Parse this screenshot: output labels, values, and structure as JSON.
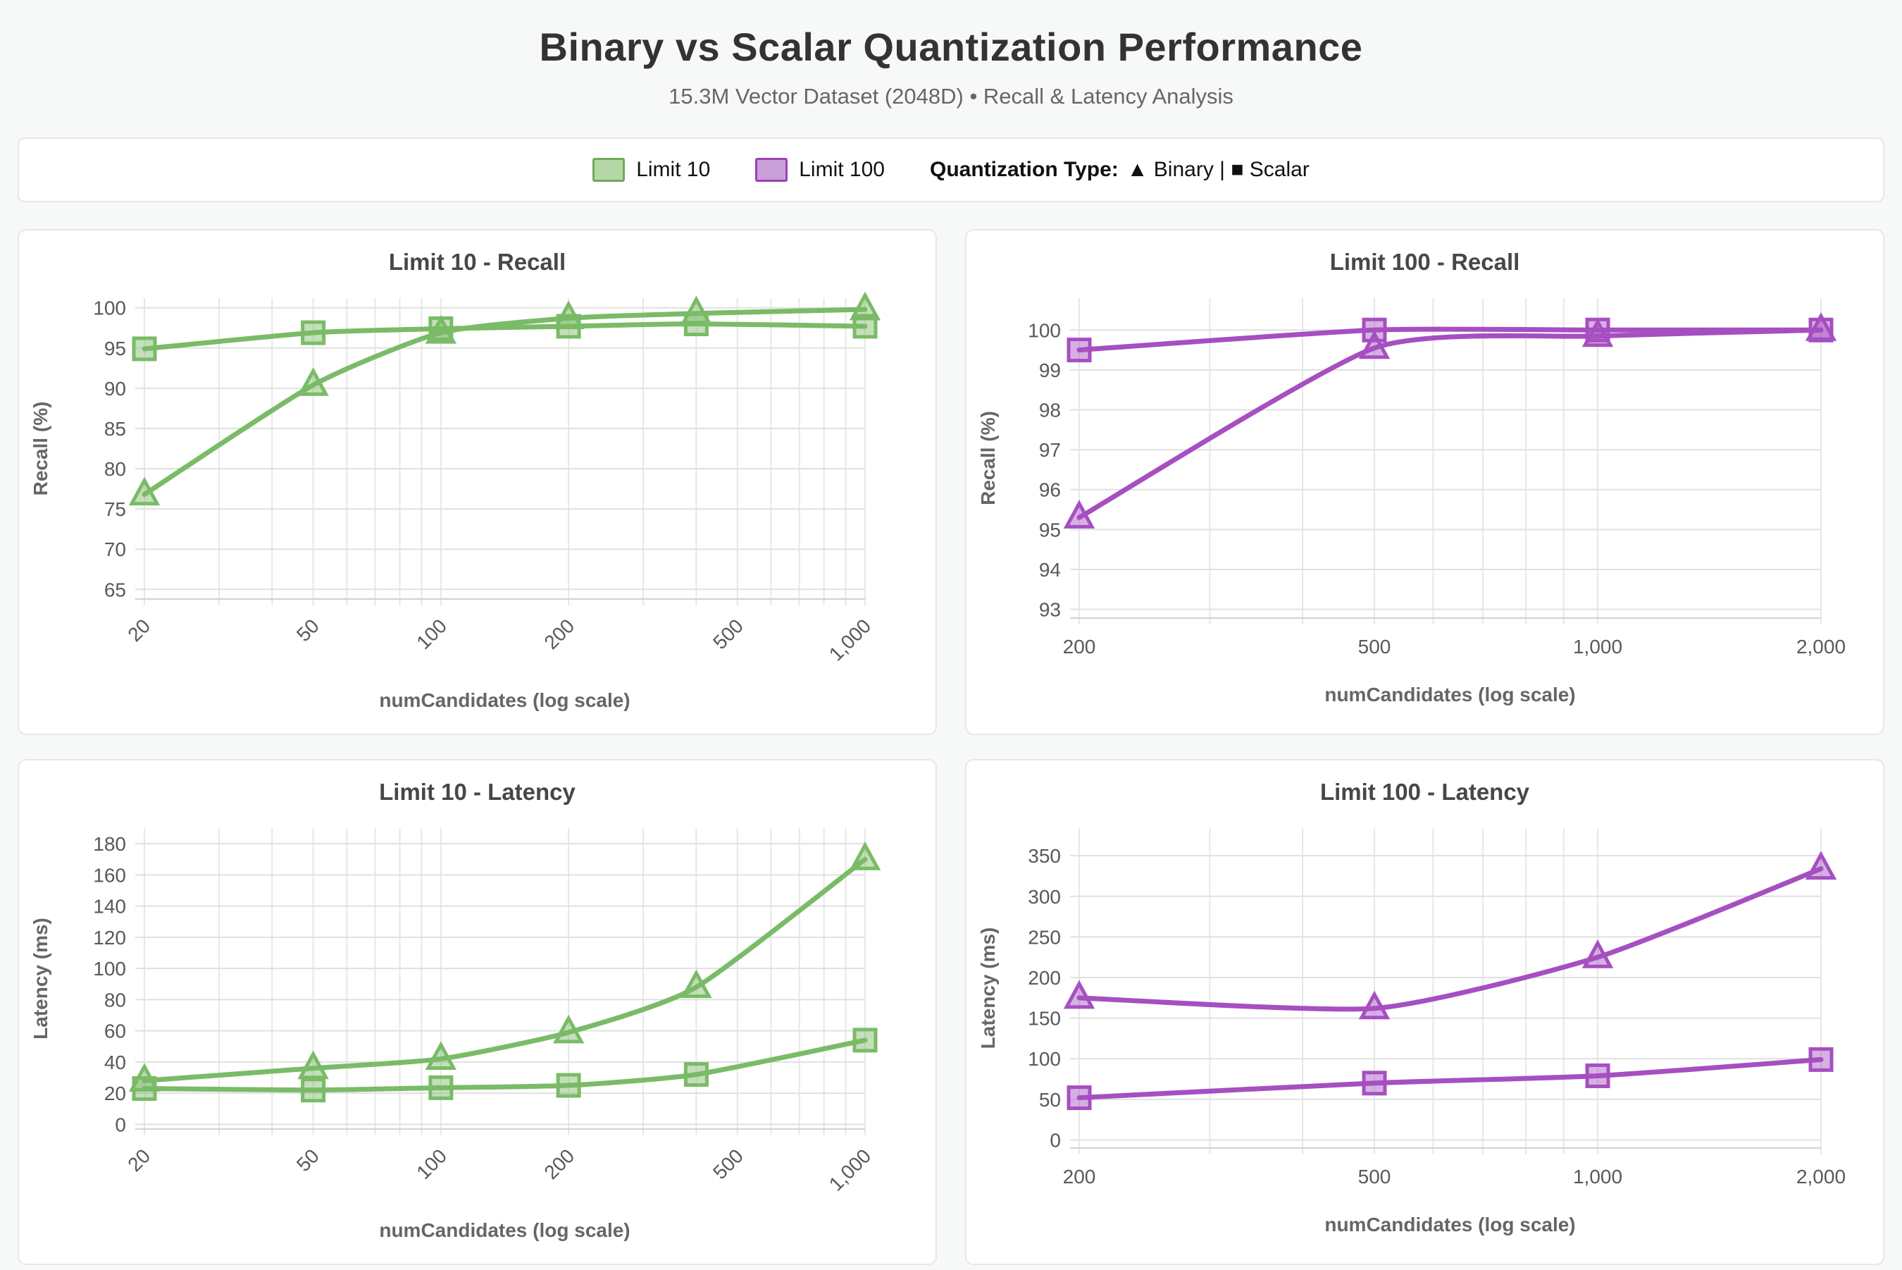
{
  "header": {
    "title": "Binary vs Scalar Quantization Performance",
    "subtitle": "15.3M Vector Dataset (2048D) • Recall & Latency Analysis"
  },
  "legend": {
    "items": [
      {
        "label": "Limit 10",
        "fill": "#b4d8a6",
        "border": "#6fa95a"
      },
      {
        "label": "Limit 100",
        "fill": "#c99fd9",
        "border": "#9c40b4"
      }
    ],
    "quant_label": "Quantization Type:",
    "quant_value": "▲ Binary | ■ Scalar"
  },
  "chart_data": [
    {
      "type": "line",
      "title": "Limit 10 - Recall",
      "xlabel": "numCandidates (log scale)",
      "ylabel": "Recall (%)",
      "legend_group": "Limit 10",
      "x_scale": "log",
      "xlim": [
        20,
        1000
      ],
      "x": [
        20,
        50,
        100,
        200,
        400,
        1000
      ],
      "x_ticks": [
        20,
        50,
        100,
        200,
        500,
        1000
      ],
      "x_tick_labels": [
        "20",
        "50",
        "100",
        "200",
        "500",
        "1,000"
      ],
      "x_ticks_rotated": true,
      "ylim": [
        63.8,
        101.2
      ],
      "y_ticks": [
        65,
        70,
        75,
        80,
        85,
        90,
        95,
        100
      ],
      "grid": true,
      "color": "#7abb67",
      "series": [
        {
          "name": "Binary",
          "marker": "triangle",
          "values": [
            76.8,
            90.4,
            96.9,
            98.7,
            99.3,
            99.8
          ]
        },
        {
          "name": "Scalar",
          "marker": "square",
          "values": [
            94.9,
            96.9,
            97.4,
            97.7,
            98.0,
            97.7
          ]
        }
      ]
    },
    {
      "type": "line",
      "title": "Limit 100 - Recall",
      "xlabel": "numCandidates (log scale)",
      "ylabel": "Recall (%)",
      "legend_group": "Limit 100",
      "x_scale": "log",
      "xlim": [
        200,
        2000
      ],
      "x": [
        200,
        500,
        1000,
        2000
      ],
      "x_ticks": [
        200,
        500,
        1000,
        2000
      ],
      "x_tick_labels": [
        "200",
        "500",
        "1,000",
        "2,000"
      ],
      "x_ticks_rotated": false,
      "ylim": [
        92.78,
        100.8
      ],
      "y_ticks": [
        93,
        94,
        95,
        96,
        97,
        98,
        99,
        100
      ],
      "grid": true,
      "color": "#a64fc1",
      "series": [
        {
          "name": "Binary",
          "marker": "triangle",
          "values": [
            95.3,
            99.55,
            99.85,
            100.0
          ]
        },
        {
          "name": "Scalar",
          "marker": "square",
          "values": [
            99.5,
            100.0,
            100.0,
            100.0
          ]
        }
      ]
    },
    {
      "type": "line",
      "title": "Limit 10 - Latency",
      "xlabel": "numCandidates (log scale)",
      "ylabel": "Latency (ms)",
      "legend_group": "Limit 10",
      "x_scale": "log",
      "xlim": [
        20,
        1000
      ],
      "x": [
        20,
        50,
        100,
        200,
        400,
        1000
      ],
      "x_ticks": [
        20,
        50,
        100,
        200,
        500,
        1000
      ],
      "x_tick_labels": [
        "20",
        "50",
        "100",
        "200",
        "500",
        "1,000"
      ],
      "x_ticks_rotated": true,
      "ylim": [
        -3,
        190
      ],
      "y_ticks": [
        0,
        20,
        40,
        60,
        80,
        100,
        120,
        140,
        160,
        180
      ],
      "grid": true,
      "color": "#7abb67",
      "series": [
        {
          "name": "Binary",
          "marker": "triangle",
          "values": [
            28,
            36,
            42,
            59,
            88,
            170
          ]
        },
        {
          "name": "Scalar",
          "marker": "square",
          "values": [
            23,
            22,
            23.5,
            25,
            32,
            54
          ]
        }
      ]
    },
    {
      "type": "line",
      "title": "Limit 100 - Latency",
      "xlabel": "numCandidates (log scale)",
      "ylabel": "Latency (ms)",
      "legend_group": "Limit 100",
      "x_scale": "log",
      "xlim": [
        200,
        2000
      ],
      "x": [
        200,
        500,
        1000,
        2000
      ],
      "x_ticks": [
        200,
        500,
        1000,
        2000
      ],
      "x_tick_labels": [
        "200",
        "500",
        "1,000",
        "2,000"
      ],
      "x_ticks_rotated": false,
      "ylim": [
        -10,
        384
      ],
      "y_ticks": [
        0,
        50,
        100,
        150,
        200,
        250,
        300,
        350
      ],
      "grid": true,
      "color": "#a64fc1",
      "series": [
        {
          "name": "Binary",
          "marker": "triangle",
          "values": [
            175,
            162,
            225,
            334
          ]
        },
        {
          "name": "Scalar",
          "marker": "square",
          "values": [
            52,
            70,
            79,
            99
          ]
        }
      ]
    }
  ]
}
